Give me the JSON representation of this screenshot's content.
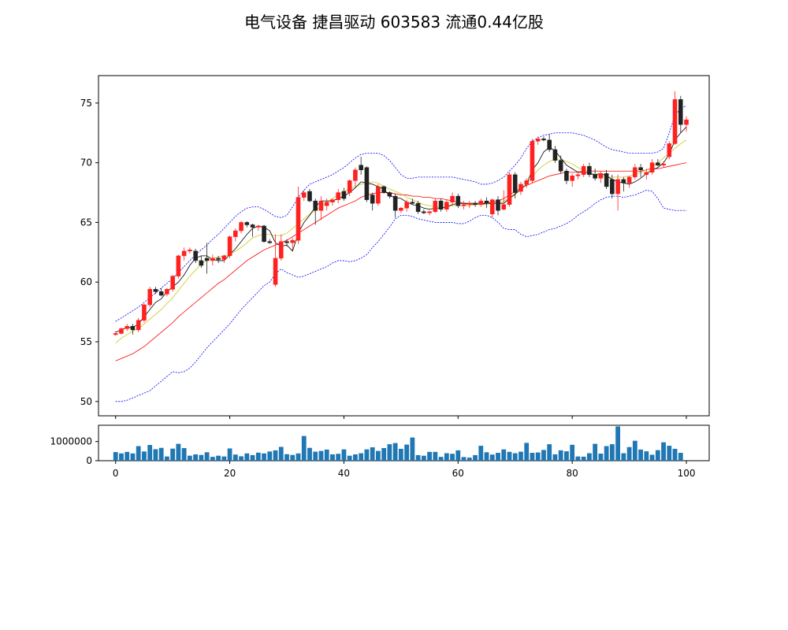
{
  "title": "电气设备 捷昌驱动 603583 流通0.44亿股",
  "colors": {
    "up": "#ff2020",
    "down": "#222222",
    "ma5": "#000000",
    "ma10": "#c8c81e",
    "ma20": "#ff0000",
    "boll": "#0000ff",
    "volume": "#1f77b4"
  },
  "chart_data": [
    {
      "type": "candlestick",
      "title": "电气设备 捷昌驱动 603583 流通0.44亿股",
      "xlim": [
        -3,
        104
      ],
      "ylim": [
        48.8,
        77.3
      ],
      "xticks": [
        0,
        20,
        40,
        60,
        80,
        100
      ],
      "yticks": [
        50,
        55,
        60,
        65,
        70,
        75
      ],
      "xtick_labels": [
        "0",
        "20",
        "40",
        "60",
        "80",
        "100"
      ],
      "ytick_labels": [
        "50",
        "55",
        "60",
        "65",
        "70",
        "75"
      ],
      "grid": false,
      "ohlc": [
        [
          55.6,
          55.9,
          55.5,
          55.7
        ],
        [
          55.7,
          56.2,
          55.6,
          56.1
        ],
        [
          56.1,
          56.5,
          55.9,
          56.3
        ],
        [
          56.3,
          56.5,
          55.6,
          56.0
        ],
        [
          56.0,
          57.0,
          55.8,
          56.8
        ],
        [
          56.8,
          58.2,
          56.6,
          58.1
        ],
        [
          58.1,
          59.6,
          57.9,
          59.4
        ],
        [
          59.4,
          59.6,
          59.0,
          59.2
        ],
        [
          59.2,
          59.5,
          58.8,
          58.9
        ],
        [
          59.0,
          59.5,
          58.8,
          59.4
        ],
        [
          59.4,
          60.6,
          59.2,
          60.5
        ],
        [
          60.5,
          62.3,
          60.3,
          62.2
        ],
        [
          62.2,
          62.9,
          61.8,
          62.6
        ],
        [
          62.6,
          62.9,
          62.4,
          62.7
        ],
        [
          62.6,
          62.8,
          61.6,
          61.8
        ],
        [
          61.8,
          62.2,
          61.2,
          61.4
        ],
        [
          62.0,
          63.3,
          60.7,
          61.8
        ],
        [
          61.8,
          62.3,
          61.4,
          62.0
        ],
        [
          62.0,
          62.2,
          61.6,
          61.9
        ],
        [
          61.9,
          62.3,
          61.6,
          62.2
        ],
        [
          62.2,
          63.9,
          62.0,
          63.8
        ],
        [
          63.8,
          64.5,
          63.4,
          64.3
        ],
        [
          64.3,
          65.1,
          64.1,
          65.0
        ],
        [
          65.0,
          65.1,
          64.6,
          64.8
        ],
        [
          64.8,
          64.9,
          63.8,
          64.6
        ],
        [
          64.6,
          64.8,
          64.3,
          64.7
        ],
        [
          64.7,
          64.8,
          63.3,
          63.4
        ],
        [
          63.4,
          63.6,
          63.2,
          63.3
        ],
        [
          59.8,
          64.0,
          59.6,
          62.0
        ],
        [
          62.0,
          64.0,
          61.8,
          63.4
        ],
        [
          63.4,
          63.6,
          63.0,
          63.3
        ],
        [
          63.3,
          63.7,
          62.7,
          63.5
        ],
        [
          63.5,
          68.0,
          63.2,
          67.1
        ],
        [
          67.1,
          67.7,
          66.8,
          67.5
        ],
        [
          67.6,
          67.8,
          66.7,
          66.8
        ],
        [
          66.8,
          67.0,
          64.8,
          66.0
        ],
        [
          66.0,
          67.2,
          65.2,
          66.8
        ],
        [
          66.4,
          67.0,
          66.0,
          66.7
        ],
        [
          66.7,
          67.0,
          66.4,
          66.9
        ],
        [
          66.9,
          67.8,
          66.6,
          67.5
        ],
        [
          67.6,
          67.9,
          66.8,
          67.0
        ],
        [
          67.5,
          68.6,
          67.2,
          68.5
        ],
        [
          68.5,
          69.6,
          68.0,
          69.4
        ],
        [
          69.8,
          70.5,
          69.0,
          69.4
        ],
        [
          69.6,
          69.7,
          66.7,
          66.9
        ],
        [
          67.3,
          67.5,
          66.0,
          66.6
        ],
        [
          66.6,
          68.2,
          66.4,
          68.0
        ],
        [
          68.0,
          68.1,
          67.4,
          67.5
        ],
        [
          67.5,
          67.6,
          67.0,
          67.2
        ],
        [
          67.2,
          67.4,
          65.4,
          66.0
        ],
        [
          66.0,
          66.3,
          65.8,
          66.2
        ],
        [
          66.2,
          66.9,
          65.9,
          66.7
        ],
        [
          66.7,
          67.0,
          66.5,
          66.6
        ],
        [
          66.6,
          66.8,
          65.7,
          65.9
        ],
        [
          65.9,
          66.1,
          65.7,
          65.8
        ],
        [
          65.8,
          66.0,
          65.6,
          65.9
        ],
        [
          65.9,
          67.0,
          65.8,
          66.8
        ],
        [
          66.8,
          67.0,
          65.9,
          66.1
        ],
        [
          66.1,
          66.9,
          65.9,
          66.7
        ],
        [
          66.7,
          67.5,
          66.4,
          67.2
        ],
        [
          67.2,
          67.4,
          66.2,
          66.4
        ],
        [
          66.4,
          66.8,
          66.1,
          66.5
        ],
        [
          66.5,
          66.8,
          66.2,
          66.6
        ],
        [
          66.6,
          66.8,
          66.3,
          66.5
        ],
        [
          66.5,
          67.0,
          66.3,
          66.8
        ],
        [
          66.8,
          67.1,
          66.2,
          66.6
        ],
        [
          65.7,
          67.0,
          65.4,
          66.9
        ],
        [
          66.9,
          67.2,
          65.6,
          66.0
        ],
        [
          66.1,
          67.7,
          66.0,
          66.5
        ],
        [
          66.5,
          69.2,
          66.3,
          69.0
        ],
        [
          69.0,
          69.2,
          67.0,
          67.5
        ],
        [
          67.6,
          68.4,
          67.3,
          68.2
        ],
        [
          68.2,
          68.7,
          67.9,
          68.5
        ],
        [
          68.5,
          72.0,
          68.3,
          71.8
        ],
        [
          71.8,
          72.2,
          71.5,
          72.0
        ],
        [
          72.0,
          72.2,
          71.8,
          71.9
        ],
        [
          71.9,
          72.4,
          70.9,
          71.1
        ],
        [
          71.1,
          71.4,
          70.0,
          70.2
        ],
        [
          70.2,
          70.6,
          69.1,
          69.3
        ],
        [
          69.3,
          69.5,
          68.2,
          68.5
        ],
        [
          68.5,
          69.1,
          68.0,
          68.9
        ],
        [
          68.9,
          69.3,
          68.6,
          69.0
        ],
        [
          69.0,
          69.9,
          68.8,
          69.7
        ],
        [
          69.7,
          70.0,
          68.8,
          69.0
        ],
        [
          69.0,
          69.5,
          68.5,
          68.7
        ],
        [
          68.7,
          69.3,
          68.3,
          69.1
        ],
        [
          69.1,
          69.4,
          67.8,
          68.0
        ],
        [
          68.6,
          69.0,
          67.0,
          67.4
        ],
        [
          67.4,
          69.0,
          66.0,
          68.6
        ],
        [
          68.6,
          68.8,
          67.6,
          68.3
        ],
        [
          68.3,
          68.9,
          67.9,
          68.8
        ],
        [
          68.8,
          69.9,
          68.6,
          69.6
        ],
        [
          69.6,
          69.9,
          68.8,
          69.4
        ],
        [
          69.0,
          69.5,
          68.6,
          69.2
        ],
        [
          69.2,
          70.3,
          69.0,
          70.0
        ],
        [
          70.0,
          70.3,
          69.7,
          69.8
        ],
        [
          69.8,
          70.1,
          69.6,
          69.9
        ],
        [
          70.5,
          71.8,
          70.3,
          71.6
        ],
        [
          71.6,
          76.0,
          71.5,
          75.3
        ],
        [
          75.3,
          75.6,
          72.5,
          73.2
        ],
        [
          73.2,
          73.9,
          72.6,
          73.6
        ]
      ],
      "ma5": [
        55.8,
        56.0,
        56.2,
        56.2,
        56.5,
        57.1,
        57.7,
        58.3,
        58.6,
        59.2,
        59.6,
        60.0,
        60.6,
        61.4,
        62.0,
        62.2,
        62.2,
        61.9,
        61.8,
        61.8,
        62.3,
        62.8,
        63.4,
        64.0,
        64.5,
        64.7,
        64.6,
        64.3,
        63.3,
        63.0,
        63.1,
        62.6,
        64.1,
        65.0,
        65.6,
        66.3,
        66.8,
        66.8,
        66.8,
        67.0,
        67.2,
        67.5,
        67.9,
        68.4,
        68.3,
        68.2,
        68.0,
        67.8,
        67.2,
        67.1,
        67.0,
        66.7,
        66.5,
        66.4,
        66.2,
        66.1,
        66.2,
        66.2,
        66.3,
        66.5,
        66.6,
        66.6,
        66.6,
        66.6,
        66.6,
        66.6,
        66.6,
        66.6,
        66.6,
        67.0,
        67.4,
        67.8,
        68.2,
        69.4,
        70.0,
        70.9,
        71.3,
        71.0,
        70.4,
        69.8,
        69.5,
        69.2,
        69.2,
        69.1,
        69.0,
        69.1,
        68.9,
        68.6,
        68.4,
        68.3,
        68.2,
        68.4,
        68.7,
        69.1,
        69.4,
        69.6,
        70.0,
        70.7,
        71.9,
        72.5,
        73.0
      ],
      "ma10": [
        54.9,
        55.3,
        55.6,
        55.9,
        56.1,
        56.5,
        56.9,
        57.3,
        57.7,
        58.2,
        58.7,
        59.3,
        59.9,
        60.5,
        61.0,
        61.5,
        61.8,
        62.0,
        62.1,
        62.2,
        62.3,
        62.6,
        62.9,
        63.3,
        63.7,
        63.9,
        64.0,
        64.0,
        63.9,
        63.9,
        64.1,
        64.5,
        64.9,
        65.3,
        65.7,
        66.0,
        66.3,
        66.7,
        67.0,
        67.3,
        67.6,
        67.8,
        68.0,
        68.2,
        68.3,
        68.4,
        68.3,
        68.0,
        67.8,
        67.6,
        67.4,
        67.1,
        66.9,
        66.7,
        66.5,
        66.4,
        66.3,
        66.3,
        66.3,
        66.4,
        66.4,
        66.4,
        66.4,
        66.5,
        66.5,
        66.5,
        66.6,
        66.6,
        66.8,
        67.0,
        67.3,
        67.7,
        68.2,
        68.8,
        69.4,
        69.8,
        70.1,
        70.3,
        70.3,
        70.1,
        69.9,
        69.6,
        69.4,
        69.2,
        69.0,
        68.9,
        68.8,
        68.8,
        68.8,
        68.8,
        68.9,
        69.0,
        69.2,
        69.4,
        69.6,
        70.0,
        70.4,
        70.8,
        71.2,
        71.6,
        71.9
      ],
      "ma20": [
        53.4,
        53.6,
        53.8,
        54.0,
        54.3,
        54.6,
        55.0,
        55.4,
        55.8,
        56.2,
        56.6,
        57.1,
        57.5,
        57.9,
        58.3,
        58.7,
        59.1,
        59.5,
        59.9,
        60.2,
        60.6,
        61.0,
        61.4,
        61.8,
        62.1,
        62.4,
        62.7,
        62.9,
        63.1,
        63.3,
        63.5,
        63.8,
        64.1,
        64.4,
        64.7,
        65.0,
        65.3,
        65.6,
        65.9,
        66.2,
        66.4,
        66.6,
        66.8,
        67.1,
        67.3,
        67.4,
        67.5,
        67.5,
        67.5,
        67.4,
        67.3,
        67.3,
        67.2,
        67.2,
        67.1,
        67.1,
        67.0,
        67.0,
        66.9,
        66.8,
        66.7,
        66.6,
        66.5,
        66.5,
        66.5,
        66.6,
        66.7,
        66.8,
        67.0,
        67.3,
        67.6,
        67.9,
        68.1,
        68.3,
        68.5,
        68.7,
        68.9,
        69.0,
        69.1,
        69.2,
        69.2,
        69.2,
        69.3,
        69.3,
        69.3,
        69.3,
        69.3,
        69.3,
        69.3,
        69.3,
        69.3,
        69.3,
        69.3,
        69.4,
        69.5,
        69.5,
        69.6,
        69.7,
        69.8,
        69.9,
        70.0
      ],
      "boll_upper": [
        56.7,
        57.0,
        57.3,
        57.6,
        57.9,
        58.3,
        58.7,
        59.1,
        59.5,
        59.9,
        60.3,
        60.8,
        61.3,
        61.8,
        62.3,
        62.7,
        63.1,
        63.6,
        64.0,
        64.5,
        65.0,
        65.5,
        65.9,
        66.2,
        66.3,
        66.3,
        66.1,
        65.8,
        65.5,
        65.4,
        65.6,
        66.3,
        67.1,
        67.7,
        68.2,
        68.4,
        68.6,
        68.8,
        69.0,
        69.3,
        69.6,
        70.0,
        70.4,
        70.7,
        70.8,
        70.8,
        70.8,
        70.6,
        70.2,
        69.6,
        69.0,
        68.7,
        68.7,
        68.8,
        68.8,
        68.8,
        68.8,
        68.8,
        68.8,
        68.8,
        68.7,
        68.6,
        68.5,
        68.4,
        68.2,
        68.2,
        68.3,
        68.5,
        68.8,
        69.3,
        69.8,
        70.4,
        71.2,
        71.8,
        72.1,
        72.3,
        72.4,
        72.5,
        72.5,
        72.5,
        72.5,
        72.4,
        72.3,
        72.1,
        71.9,
        71.6,
        71.3,
        71.1,
        71.0,
        70.9,
        70.8,
        70.8,
        70.8,
        70.8,
        70.8,
        70.9,
        71.2,
        72.5,
        74.0,
        74.5,
        74.8
      ],
      "boll_lower": [
        50.0,
        50.0,
        50.1,
        50.3,
        50.5,
        50.7,
        50.9,
        51.3,
        51.7,
        52.1,
        52.5,
        52.4,
        52.5,
        52.8,
        53.3,
        53.9,
        54.5,
        55.0,
        55.5,
        56.0,
        56.5,
        57.1,
        57.7,
        58.2,
        58.7,
        59.2,
        59.7,
        60.0,
        60.7,
        61.1,
        60.8,
        60.6,
        60.4,
        60.5,
        60.7,
        60.9,
        61.1,
        61.3,
        61.6,
        61.8,
        61.8,
        61.7,
        61.8,
        62.0,
        62.3,
        62.9,
        63.4,
        64.0,
        64.6,
        65.3,
        65.6,
        65.6,
        65.5,
        65.3,
        65.2,
        65.1,
        65.0,
        65.0,
        65.0,
        65.0,
        64.9,
        64.9,
        65.1,
        65.4,
        65.6,
        65.6,
        65.4,
        65.0,
        64.5,
        64.4,
        64.4,
        64.0,
        63.8,
        63.9,
        64.0,
        64.2,
        64.4,
        64.5,
        64.7,
        64.9,
        65.2,
        65.6,
        65.9,
        66.2,
        66.6,
        66.9,
        67.1,
        67.2,
        67.2,
        67.1,
        67.2,
        67.3,
        67.5,
        67.7,
        67.6,
        67.0,
        66.2,
        66.1,
        66.0,
        66.0,
        66.0
      ]
    },
    {
      "type": "bar",
      "xlim": [
        -3,
        104
      ],
      "ylim": [
        0,
        1850000
      ],
      "yticks": [
        0,
        1000000
      ],
      "ytick_labels": [
        "0",
        "1000000"
      ],
      "xticks": [
        0,
        20,
        40,
        60,
        80,
        100
      ],
      "xtick_labels": [
        "0",
        "20",
        "40",
        "60",
        "80",
        "100"
      ],
      "values": [
        450000,
        380000,
        460000,
        380000,
        760000,
        480000,
        820000,
        600000,
        670000,
        220000,
        630000,
        880000,
        660000,
        260000,
        330000,
        300000,
        440000,
        200000,
        260000,
        220000,
        640000,
        320000,
        230000,
        380000,
        290000,
        420000,
        380000,
        480000,
        540000,
        720000,
        340000,
        300000,
        380000,
        1290000,
        670000,
        470000,
        510000,
        580000,
        330000,
        360000,
        590000,
        260000,
        330000,
        390000,
        590000,
        700000,
        510000,
        660000,
        860000,
        920000,
        620000,
        840000,
        1210000,
        290000,
        260000,
        460000,
        460000,
        200000,
        390000,
        360000,
        540000,
        190000,
        160000,
        290000,
        780000,
        440000,
        320000,
        410000,
        590000,
        460000,
        390000,
        470000,
        930000,
        410000,
        430000,
        560000,
        860000,
        330000,
        540000,
        490000,
        830000,
        220000,
        210000,
        390000,
        880000,
        370000,
        760000,
        860000,
        1790000,
        390000,
        710000,
        1040000,
        580000,
        490000,
        310000,
        550000,
        960000,
        780000,
        620000,
        410000
      ]
    }
  ]
}
